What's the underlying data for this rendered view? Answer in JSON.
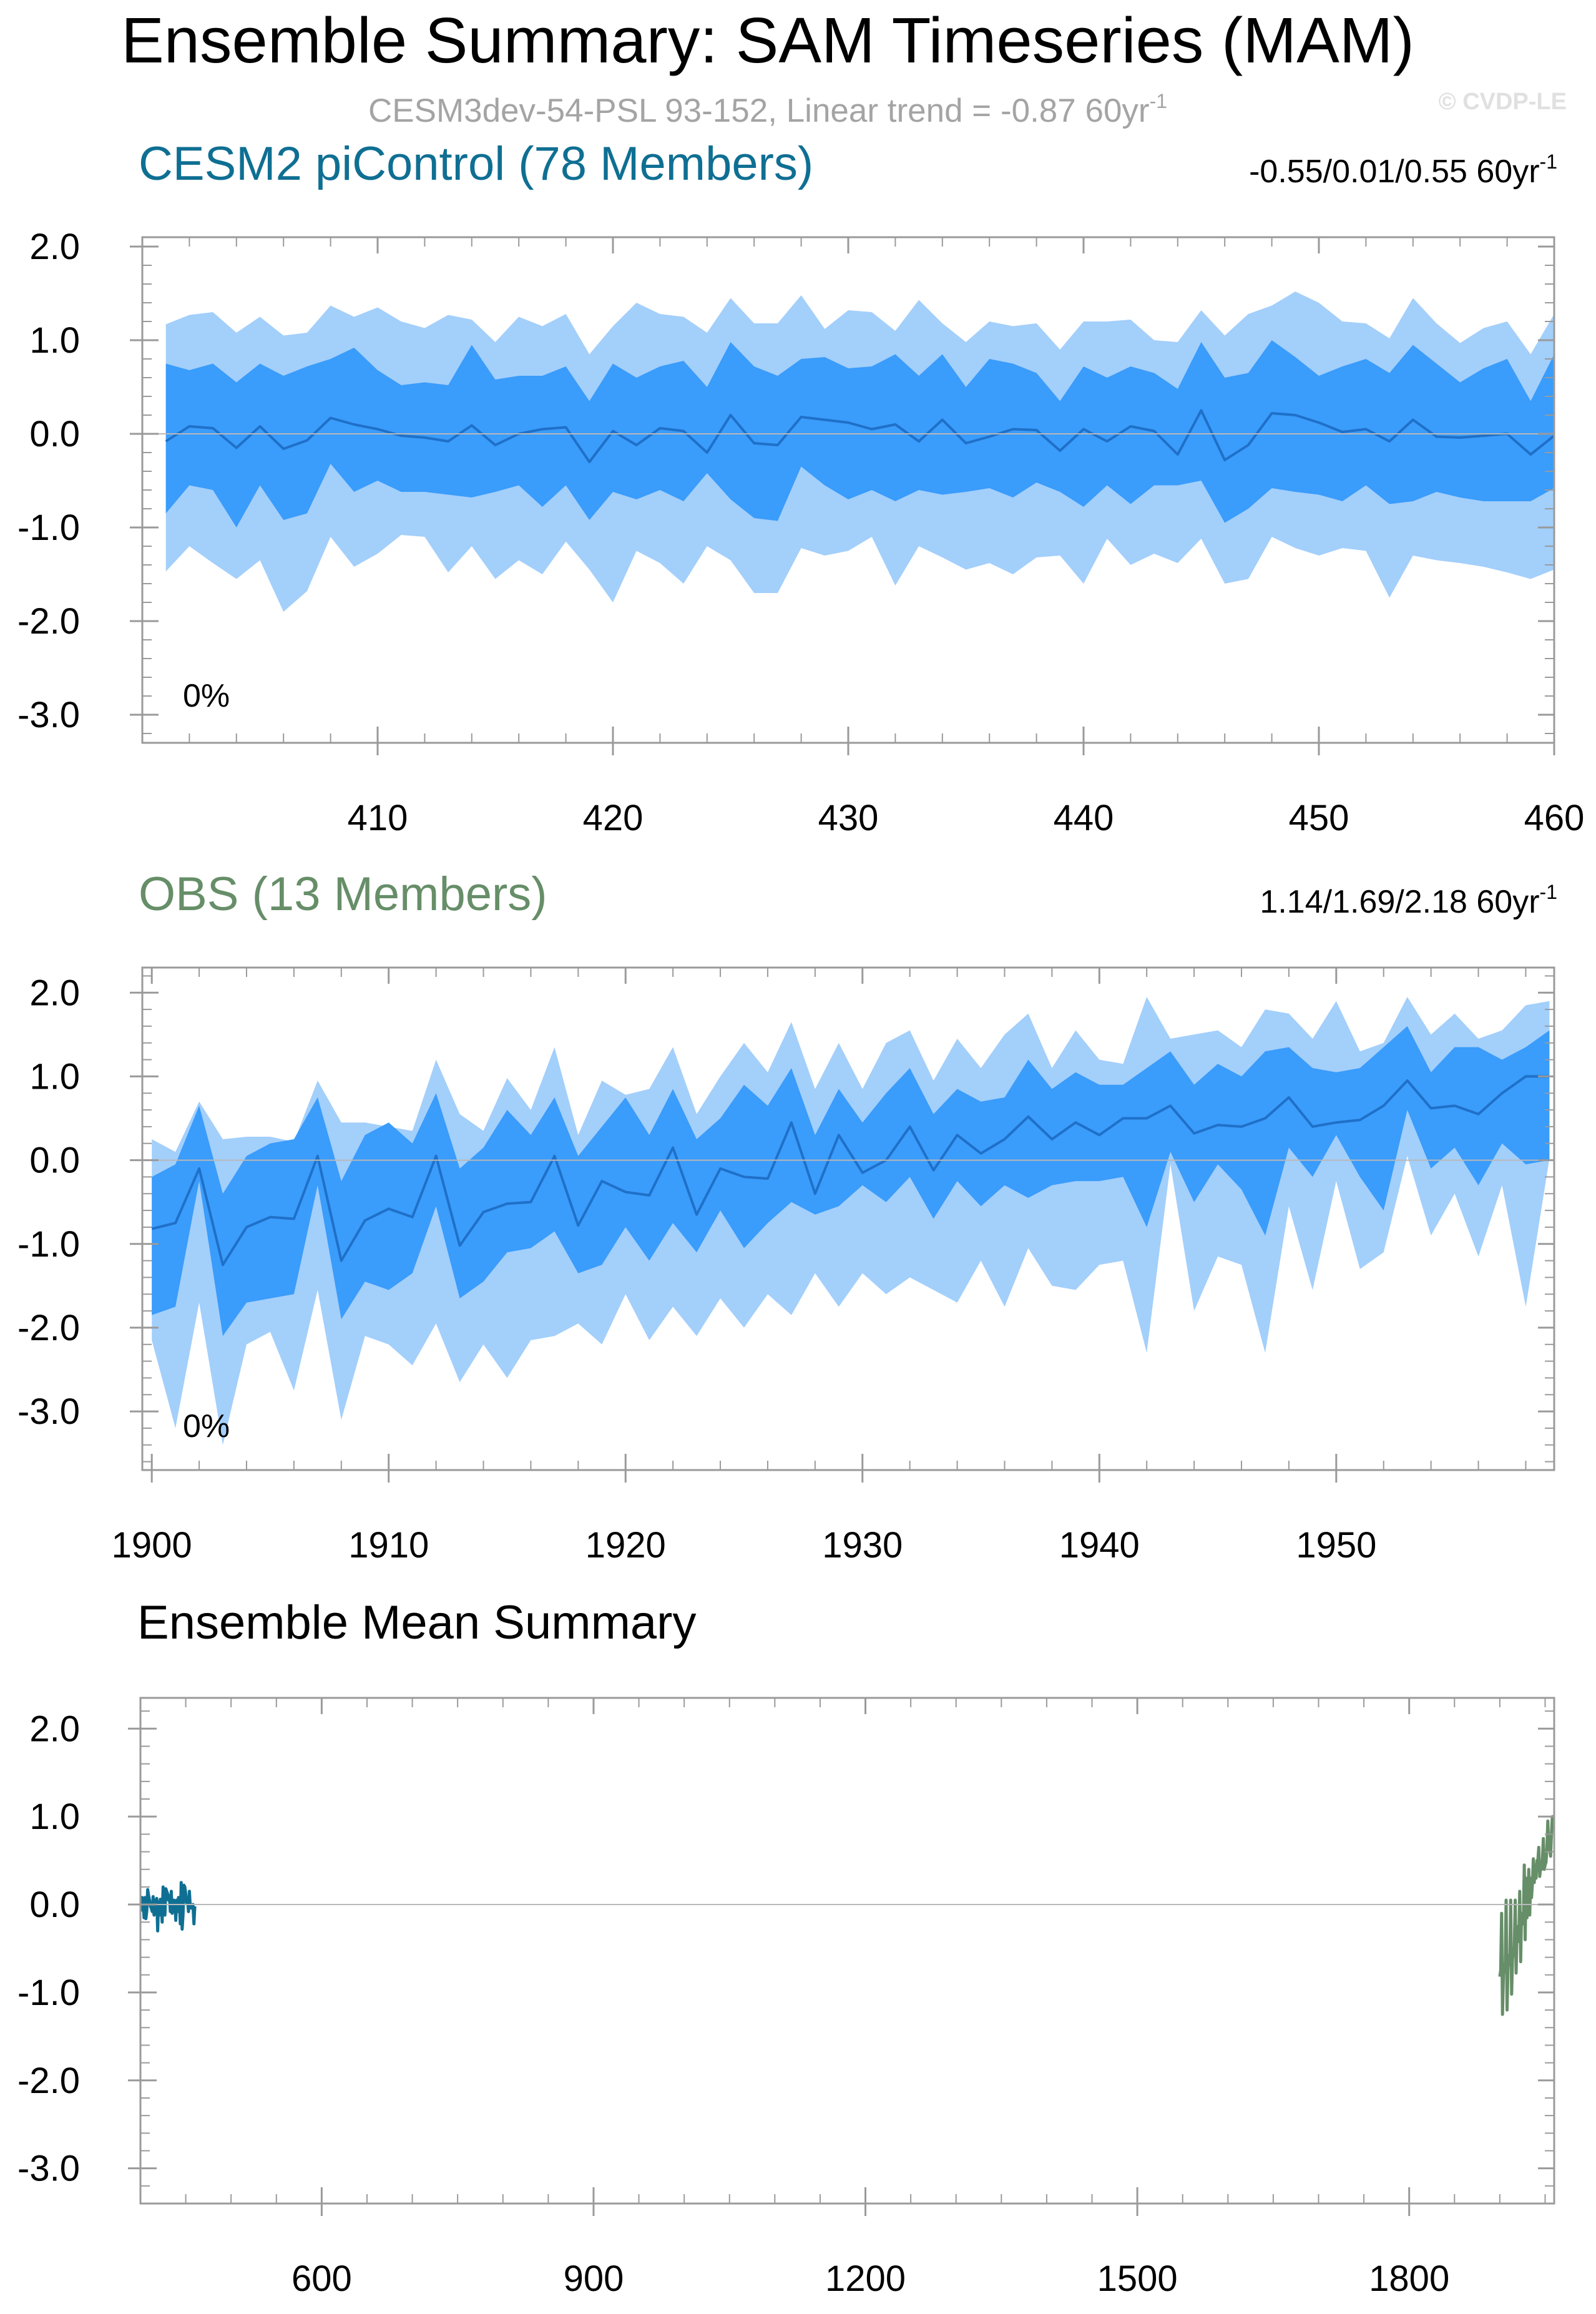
{
  "title": "Ensemble Summary: SAM Timeseries (MAM)",
  "subtitle": "CESM3dev-54-PSL 93-152, Linear trend = -0.87 60yr",
  "subtitle_superscript": "-1",
  "watermark": "© CVDP-LE",
  "colors": {
    "outer_band": "#a3cffb",
    "inner_band": "#3a9cfb",
    "mean_line": "#1f70c8",
    "picontrol_title": "#0f6f93",
    "obs_title": "#668e68",
    "zero_line": "#b9b9b9",
    "frame": "#9a9a9a"
  },
  "chart_data": [
    {
      "type": "area",
      "title": "CESM2 piControl (78 Members)",
      "trend_label": "-0.55/0.01/0.55 60yr",
      "trend_superscript": "-1",
      "percent_label": "0%",
      "xlim": [
        400,
        460
      ],
      "ylim": [
        -3.3,
        2.1
      ],
      "xticks": [
        "410",
        "420",
        "430",
        "440",
        "450",
        "460"
      ],
      "yticks": [
        "2.0",
        "1.0",
        "0.0",
        "-1.0",
        "-2.0",
        "-3.0"
      ],
      "x": [
        401,
        402,
        403,
        404,
        405,
        406,
        407,
        408,
        409,
        410,
        411,
        412,
        413,
        414,
        415,
        416,
        417,
        418,
        419,
        420,
        421,
        422,
        423,
        424,
        425,
        426,
        427,
        428,
        429,
        430,
        431,
        432,
        433,
        434,
        435,
        436,
        437,
        438,
        439,
        440,
        441,
        442,
        443,
        444,
        445,
        446,
        447,
        448,
        449,
        450,
        451,
        452,
        453,
        454,
        455,
        456,
        457,
        458,
        459,
        460
      ],
      "series": [
        {
          "name": "min",
          "values": [
            -1.47,
            -1.2,
            -1.38,
            -1.55,
            -1.35,
            -1.9,
            -1.68,
            -1.1,
            -1.42,
            -1.28,
            -1.08,
            -1.1,
            -1.48,
            -1.2,
            -1.55,
            -1.35,
            -1.5,
            -1.15,
            -1.45,
            -1.8,
            -1.25,
            -1.38,
            -1.6,
            -1.2,
            -1.35,
            -1.7,
            -1.7,
            -1.22,
            -1.3,
            -1.25,
            -1.1,
            -1.62,
            -1.2,
            -1.32,
            -1.45,
            -1.38,
            -1.5,
            -1.32,
            -1.3,
            -1.6,
            -1.12,
            -1.4,
            -1.28,
            -1.38,
            -1.12,
            -1.6,
            -1.55,
            -1.1,
            -1.22,
            -1.3,
            -1.22,
            -1.25,
            -1.75,
            -1.3,
            -1.35,
            -1.38,
            -1.42,
            -1.48,
            -1.55,
            -1.45
          ]
        },
        {
          "name": "q_low",
          "values": [
            -0.85,
            -0.55,
            -0.6,
            -1.0,
            -0.55,
            -0.92,
            -0.85,
            -0.32,
            -0.62,
            -0.5,
            -0.62,
            -0.62,
            -0.65,
            -0.68,
            -0.62,
            -0.55,
            -0.78,
            -0.55,
            -0.92,
            -0.62,
            -0.7,
            -0.6,
            -0.72,
            -0.42,
            -0.7,
            -0.9,
            -0.93,
            -0.35,
            -0.55,
            -0.7,
            -0.6,
            -0.72,
            -0.6,
            -0.65,
            -0.62,
            -0.58,
            -0.68,
            -0.52,
            -0.62,
            -0.78,
            -0.55,
            -0.75,
            -0.55,
            -0.55,
            -0.5,
            -0.95,
            -0.8,
            -0.58,
            -0.62,
            -0.65,
            -0.72,
            -0.55,
            -0.75,
            -0.72,
            -0.62,
            -0.68,
            -0.72,
            -0.72,
            -0.72,
            -0.58
          ]
        },
        {
          "name": "mean",
          "values": [
            -0.08,
            0.08,
            0.06,
            -0.15,
            0.08,
            -0.16,
            -0.07,
            0.17,
            0.1,
            0.05,
            -0.02,
            -0.04,
            -0.08,
            0.09,
            -0.12,
            0.0,
            0.05,
            0.07,
            -0.3,
            0.03,
            -0.12,
            0.06,
            0.03,
            -0.2,
            0.2,
            -0.1,
            -0.12,
            0.18,
            0.15,
            0.12,
            0.05,
            0.1,
            -0.08,
            0.15,
            -0.1,
            -0.03,
            0.05,
            0.04,
            -0.18,
            0.05,
            -0.08,
            0.08,
            0.03,
            -0.22,
            0.25,
            -0.28,
            -0.12,
            0.22,
            0.2,
            0.12,
            0.02,
            0.05,
            -0.08,
            0.15,
            -0.03,
            -0.04,
            -0.02,
            0.0,
            -0.22,
            -0.02
          ]
        },
        {
          "name": "q_high",
          "values": [
            0.75,
            0.68,
            0.75,
            0.55,
            0.75,
            0.62,
            0.72,
            0.8,
            0.92,
            0.68,
            0.52,
            0.55,
            0.52,
            0.95,
            0.58,
            0.62,
            0.62,
            0.72,
            0.35,
            0.75,
            0.6,
            0.72,
            0.78,
            0.5,
            0.98,
            0.72,
            0.62,
            0.8,
            0.82,
            0.7,
            0.72,
            0.85,
            0.62,
            0.85,
            0.5,
            0.8,
            0.75,
            0.65,
            0.35,
            0.72,
            0.6,
            0.72,
            0.65,
            0.48,
            0.98,
            0.6,
            0.65,
            1.0,
            0.82,
            0.62,
            0.72,
            0.8,
            0.65,
            0.95,
            0.75,
            0.55,
            0.7,
            0.8,
            0.35,
            0.85
          ]
        },
        {
          "name": "max",
          "values": [
            1.17,
            1.27,
            1.3,
            1.08,
            1.25,
            1.05,
            1.08,
            1.37,
            1.25,
            1.35,
            1.2,
            1.13,
            1.27,
            1.22,
            0.98,
            1.25,
            1.15,
            1.28,
            0.85,
            1.15,
            1.4,
            1.28,
            1.25,
            1.08,
            1.45,
            1.18,
            1.18,
            1.48,
            1.12,
            1.32,
            1.3,
            1.1,
            1.43,
            1.18,
            0.98,
            1.2,
            1.15,
            1.18,
            0.9,
            1.2,
            1.2,
            1.22,
            1.0,
            0.98,
            1.32,
            1.05,
            1.28,
            1.37,
            1.52,
            1.4,
            1.2,
            1.18,
            1.02,
            1.45,
            1.18,
            0.97,
            1.13,
            1.2,
            0.85,
            1.28
          ]
        }
      ]
    },
    {
      "type": "area",
      "title": "OBS (13 Members)",
      "trend_label": "1.14/1.69/2.18 60yr",
      "trend_superscript": "-1",
      "percent_label": "0%",
      "xlim": [
        1899.6,
        1959.2
      ],
      "ylim": [
        -3.7,
        2.3
      ],
      "xticks": [
        "1900",
        "1910",
        "1920",
        "1930",
        "1940",
        "1950"
      ],
      "yticks": [
        "2.0",
        "1.0",
        "0.0",
        "-1.0",
        "-2.0",
        "-3.0"
      ],
      "x": [
        1900,
        1901,
        1902,
        1903,
        1904,
        1905,
        1906,
        1907,
        1908,
        1909,
        1910,
        1911,
        1912,
        1913,
        1914,
        1915,
        1916,
        1917,
        1918,
        1919,
        1920,
        1921,
        1922,
        1923,
        1924,
        1925,
        1926,
        1927,
        1928,
        1929,
        1930,
        1931,
        1932,
        1933,
        1934,
        1935,
        1936,
        1937,
        1938,
        1939,
        1940,
        1941,
        1942,
        1943,
        1944,
        1945,
        1946,
        1947,
        1948,
        1949,
        1950,
        1951,
        1952,
        1953,
        1954,
        1955,
        1956,
        1957,
        1958,
        1959
      ],
      "series": [
        {
          "name": "min",
          "values": [
            -2.15,
            -3.2,
            -1.7,
            -3.4,
            -2.2,
            -2.05,
            -2.75,
            -1.55,
            -3.1,
            -2.1,
            -2.2,
            -2.45,
            -1.95,
            -2.65,
            -2.2,
            -2.6,
            -2.15,
            -2.1,
            -1.95,
            -2.2,
            -1.6,
            -2.15,
            -1.75,
            -2.1,
            -1.65,
            -2.0,
            -1.6,
            -1.85,
            -1.35,
            -1.75,
            -1.35,
            -1.6,
            -1.4,
            -1.55,
            -1.7,
            -1.2,
            -1.75,
            -1.05,
            -1.5,
            -1.55,
            -1.25,
            -1.2,
            -2.3,
            -0.05,
            -1.8,
            -1.15,
            -1.25,
            -2.3,
            -0.55,
            -1.55,
            -0.25,
            -1.3,
            -1.1,
            0.05,
            -0.9,
            -0.4,
            -1.15,
            -0.3,
            -1.75,
            0.02
          ]
        },
        {
          "name": "q_low",
          "values": [
            -1.85,
            -1.75,
            -0.25,
            -2.1,
            -1.7,
            -1.65,
            -1.6,
            -0.3,
            -1.9,
            -1.45,
            -1.55,
            -1.35,
            -0.55,
            -1.65,
            -1.45,
            -1.1,
            -1.05,
            -0.85,
            -1.35,
            -1.25,
            -0.8,
            -1.2,
            -0.75,
            -1.1,
            -0.6,
            -1.05,
            -0.75,
            -0.5,
            -0.65,
            -0.55,
            -0.3,
            -0.5,
            -0.2,
            -0.7,
            -0.25,
            -0.55,
            -0.3,
            -0.45,
            -0.3,
            -0.25,
            -0.25,
            -0.2,
            -0.8,
            0.1,
            -0.5,
            -0.05,
            -0.35,
            -0.9,
            0.15,
            -0.2,
            0.3,
            -0.2,
            -0.6,
            0.6,
            -0.1,
            0.15,
            -0.3,
            0.2,
            -0.05,
            0.0
          ]
        },
        {
          "name": "mean",
          "values": [
            -0.82,
            -0.75,
            -0.1,
            -1.25,
            -0.8,
            -0.68,
            -0.7,
            0.05,
            -1.2,
            -0.72,
            -0.58,
            -0.68,
            0.05,
            -1.02,
            -0.62,
            -0.52,
            -0.5,
            0.05,
            -0.78,
            -0.25,
            -0.38,
            -0.42,
            0.15,
            -0.65,
            -0.1,
            -0.2,
            -0.22,
            0.45,
            -0.4,
            0.3,
            -0.15,
            0.0,
            0.4,
            -0.12,
            0.3,
            0.08,
            0.25,
            0.52,
            0.25,
            0.45,
            0.3,
            0.5,
            0.5,
            0.65,
            0.32,
            0.42,
            0.4,
            0.5,
            0.75,
            0.4,
            0.45,
            0.48,
            0.65,
            0.95,
            0.62,
            0.65,
            0.55,
            0.8,
            1.0,
            1.0
          ]
        },
        {
          "name": "q_high",
          "values": [
            -0.2,
            -0.05,
            0.65,
            -0.4,
            0.05,
            0.2,
            0.25,
            0.75,
            -0.25,
            0.3,
            0.45,
            0.2,
            0.8,
            -0.1,
            0.15,
            0.6,
            0.3,
            0.75,
            0.05,
            0.4,
            0.75,
            0.3,
            0.85,
            0.25,
            0.5,
            0.9,
            0.65,
            1.1,
            0.3,
            0.85,
            0.45,
            0.8,
            1.1,
            0.55,
            0.85,
            0.7,
            0.75,
            1.2,
            0.85,
            1.05,
            0.9,
            0.9,
            1.1,
            1.3,
            0.9,
            1.15,
            1.0,
            1.3,
            1.35,
            1.1,
            1.05,
            1.1,
            1.35,
            1.6,
            1.05,
            1.35,
            1.35,
            1.2,
            1.35,
            1.55
          ]
        },
        {
          "name": "max",
          "values": [
            0.25,
            0.1,
            0.7,
            0.25,
            0.28,
            0.28,
            0.22,
            0.95,
            0.45,
            0.45,
            0.4,
            0.35,
            1.2,
            0.55,
            0.35,
            0.98,
            0.6,
            1.35,
            0.3,
            0.95,
            0.78,
            0.85,
            1.35,
            0.55,
            1.0,
            1.4,
            1.05,
            1.65,
            0.85,
            1.4,
            0.85,
            1.4,
            1.55,
            0.95,
            1.45,
            1.1,
            1.5,
            1.75,
            1.1,
            1.55,
            1.2,
            1.15,
            1.95,
            1.45,
            1.5,
            1.55,
            1.35,
            1.8,
            1.75,
            1.45,
            1.9,
            1.3,
            1.4,
            1.95,
            1.5,
            1.75,
            1.45,
            1.55,
            1.85,
            1.9
          ]
        }
      ]
    },
    {
      "type": "line",
      "title": "Ensemble Mean Summary",
      "xlim": [
        400,
        1960
      ],
      "ylim": [
        -3.4,
        2.35
      ],
      "xticks": [
        "600",
        "900",
        "1200",
        "1500",
        "1800"
      ],
      "yticks": [
        "2.0",
        "1.0",
        "0.0",
        "-1.0",
        "-2.0",
        "-3.0"
      ]
    }
  ]
}
